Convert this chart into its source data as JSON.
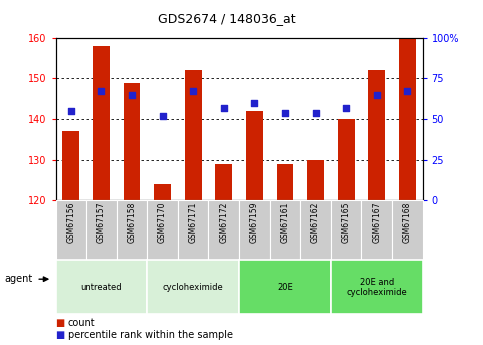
{
  "title": "GDS2674 / 148036_at",
  "samples": [
    "GSM67156",
    "GSM67157",
    "GSM67158",
    "GSM67170",
    "GSM67171",
    "GSM67172",
    "GSM67159",
    "GSM67161",
    "GSM67162",
    "GSM67165",
    "GSM67167",
    "GSM67168"
  ],
  "counts": [
    137,
    158,
    149,
    124,
    152,
    129,
    142,
    129,
    130,
    140,
    152,
    160
  ],
  "percentiles": [
    55,
    67,
    65,
    52,
    67,
    57,
    60,
    54,
    54,
    57,
    65,
    67
  ],
  "ylim_left": [
    120,
    160
  ],
  "ylim_right": [
    0,
    100
  ],
  "yticks_left": [
    120,
    130,
    140,
    150,
    160
  ],
  "yticks_right": [
    0,
    25,
    50,
    75,
    100
  ],
  "bar_color": "#cc2200",
  "dot_color": "#2222cc",
  "tick_area_color": "#cccccc",
  "agent_groups": [
    {
      "label": "untreated",
      "start": 0,
      "end": 3,
      "color": "#d8f0d8"
    },
    {
      "label": "cycloheximide",
      "start": 3,
      "end": 6,
      "color": "#d8f0d8"
    },
    {
      "label": "20E",
      "start": 6,
      "end": 9,
      "color": "#66dd66"
    },
    {
      "label": "20E and\ncycloheximide",
      "start": 9,
      "end": 12,
      "color": "#66dd66"
    }
  ],
  "legend_count_label": "count",
  "legend_pct_label": "percentile rank within the sample",
  "agent_label": "agent"
}
